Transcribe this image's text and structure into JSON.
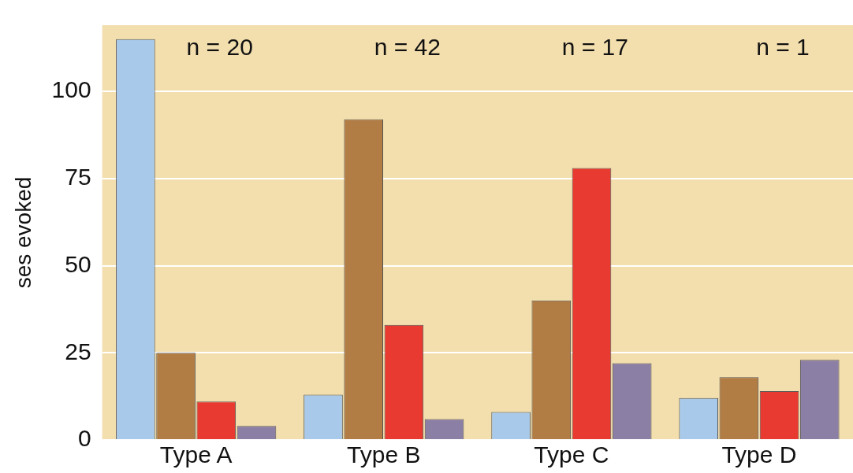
{
  "chart_data": {
    "type": "bar",
    "ylabel": "ses evoked",
    "categories": [
      "Type A",
      "Type B",
      "Type C",
      "Type D"
    ],
    "series": [
      {
        "color": "#a9c9ea",
        "values": [
          115,
          13,
          8,
          12
        ]
      },
      {
        "color": "#b27d45",
        "values": [
          25,
          92,
          40,
          18
        ]
      },
      {
        "color": "#e83a30",
        "values": [
          11,
          33,
          78,
          14
        ]
      },
      {
        "color": "#8c7fa6",
        "values": [
          4,
          6,
          22,
          23
        ]
      }
    ],
    "ylim": [
      0,
      119
    ],
    "yticks": [
      0,
      25,
      50,
      75,
      100
    ],
    "grid": "y",
    "legend": false,
    "annotations": [
      "n = 20",
      "n = 42",
      "n = 17",
      "n = 1"
    ]
  }
}
